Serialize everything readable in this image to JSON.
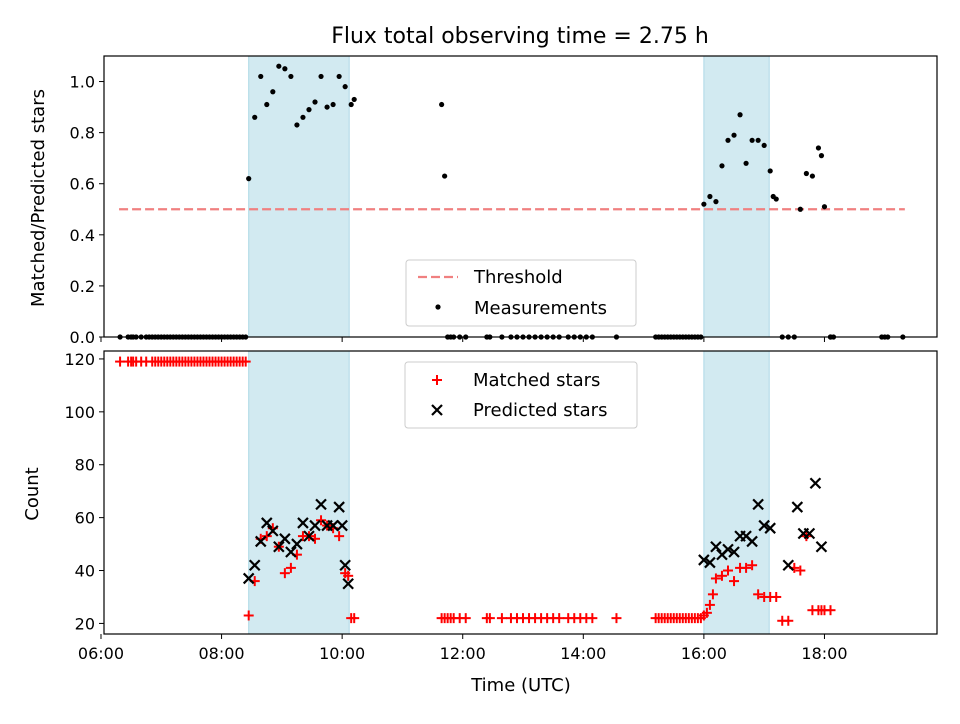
{
  "chart_data": [
    {
      "type": "scatter",
      "title": "Flux total observing time = 2.75 h",
      "xlabel": "",
      "ylabel": "Matched/Predicted stars",
      "xlim": [
        "06:03",
        "19:52"
      ],
      "ylim": [
        0,
        1.1
      ],
      "xticks": [
        "06:00",
        "08:00",
        "10:00",
        "12:00",
        "14:00",
        "16:00",
        "18:00"
      ],
      "yticks": [
        0.0,
        0.2,
        0.4,
        0.6,
        0.8,
        1.0
      ],
      "ytick_labels": [
        "0.0",
        "0.2",
        "0.4",
        "0.6",
        "0.8",
        "1.0"
      ],
      "grid": false,
      "legend": "bottom-center",
      "highlight_color": "#add8e6",
      "highlighted_intervals": [
        [
          "08:27",
          "10:07"
        ],
        [
          "16:00",
          "17:05"
        ]
      ],
      "threshold": {
        "name": "Threshold",
        "y": 0.5,
        "x_range": [
          "06:18",
          "19:20"
        ],
        "color": "#f08080"
      },
      "series": [
        {
          "name": "Measurements",
          "color": "#000000",
          "x": [
            "06:19",
            "06:27",
            "06:30",
            "06:32",
            "06:35",
            "06:40",
            "06:45",
            "06:48",
            "06:51",
            "06:54",
            "06:57",
            "07:00",
            "07:03",
            "07:06",
            "07:09",
            "07:12",
            "07:15",
            "07:18",
            "07:21",
            "07:24",
            "07:27",
            "07:30",
            "07:33",
            "07:36",
            "07:39",
            "07:42",
            "07:45",
            "07:48",
            "07:51",
            "07:54",
            "07:57",
            "08:00",
            "08:03",
            "08:06",
            "08:09",
            "08:12",
            "08:15",
            "08:18",
            "08:21",
            "08:24",
            "08:27",
            "08:33",
            "08:39",
            "08:45",
            "08:51",
            "08:57",
            "09:03",
            "09:09",
            "09:15",
            "09:21",
            "09:27",
            "09:33",
            "09:39",
            "09:45",
            "09:51",
            "09:57",
            "10:03",
            "10:09",
            "10:12",
            "11:39",
            "11:42",
            "11:45",
            "11:48",
            "11:51",
            "11:57",
            "12:03",
            "12:24",
            "12:27",
            "12:39",
            "12:48",
            "12:54",
            "13:00",
            "13:06",
            "13:12",
            "13:18",
            "13:24",
            "13:30",
            "13:36",
            "13:45",
            "13:51",
            "13:57",
            "14:03",
            "14:09",
            "14:33",
            "15:12",
            "15:15",
            "15:18",
            "15:21",
            "15:24",
            "15:27",
            "15:30",
            "15:33",
            "15:36",
            "15:39",
            "15:42",
            "15:45",
            "15:48",
            "15:51",
            "15:54",
            "15:57",
            "16:00",
            "16:06",
            "16:12",
            "16:18",
            "16:24",
            "16:30",
            "16:36",
            "16:42",
            "16:48",
            "16:54",
            "17:00",
            "17:06",
            "17:09",
            "17:12",
            "17:18",
            "17:24",
            "17:30",
            "17:36",
            "17:42",
            "17:48",
            "17:54",
            "17:57",
            "18:00",
            "18:06",
            "18:06",
            "18:09",
            "18:57",
            "19:00",
            "19:03",
            "19:18"
          ],
          "y": [
            0,
            0,
            0,
            0,
            0,
            0,
            0,
            0,
            0,
            0,
            0,
            0,
            0,
            0,
            0,
            0,
            0,
            0,
            0,
            0,
            0,
            0,
            0,
            0,
            0,
            0,
            0,
            0,
            0,
            0,
            0,
            0,
            0,
            0,
            0,
            0,
            0,
            0,
            0,
            0,
            0.62,
            0.86,
            1.02,
            0.91,
            0.96,
            1.06,
            1.05,
            1.02,
            0.83,
            0.86,
            0.89,
            0.92,
            1.02,
            0.9,
            0.91,
            1.02,
            0.98,
            0.91,
            0.93,
            0.91,
            0.63,
            0,
            0,
            0,
            0,
            0,
            0,
            0,
            0,
            0,
            0,
            0,
            0,
            0,
            0,
            0,
            0,
            0,
            0,
            0,
            0,
            0,
            0,
            0,
            0,
            0,
            0,
            0,
            0,
            0,
            0,
            0,
            0,
            0,
            0,
            0,
            0,
            0,
            0,
            0,
            0.52,
            0.55,
            0.53,
            0.67,
            0.77,
            0.79,
            0.87,
            0.68,
            0.77,
            0.77,
            0.75,
            0.65,
            0.55,
            0.54,
            0,
            0,
            0,
            0.5,
            0.64,
            0.63,
            0.74,
            0.71,
            0.51,
            0,
            0,
            0,
            0,
            0,
            0,
            0
          ]
        }
      ]
    },
    {
      "type": "scatter",
      "title": "",
      "xlabel": "Time (UTC)",
      "ylabel": "Count",
      "xlim": [
        "06:03",
        "19:52"
      ],
      "ylim": [
        16,
        123
      ],
      "xticks": [
        "06:00",
        "08:00",
        "10:00",
        "12:00",
        "14:00",
        "16:00",
        "18:00"
      ],
      "yticks": [
        20,
        40,
        60,
        80,
        100,
        120
      ],
      "ytick_labels": [
        "20",
        "40",
        "60",
        "80",
        "100",
        "120"
      ],
      "grid": false,
      "legend": "top-center",
      "highlight_color": "#add8e6",
      "highlighted_intervals": [
        [
          "08:27",
          "10:07"
        ],
        [
          "16:00",
          "17:05"
        ]
      ],
      "series": [
        {
          "name": "Matched stars",
          "marker": "+",
          "color": "#ff0000",
          "x": [
            "06:19",
            "06:27",
            "06:30",
            "06:32",
            "06:35",
            "06:40",
            "06:45",
            "06:51",
            "06:54",
            "06:57",
            "07:00",
            "07:03",
            "07:06",
            "07:09",
            "07:12",
            "07:15",
            "07:18",
            "07:21",
            "07:24",
            "07:27",
            "07:30",
            "07:33",
            "07:36",
            "07:39",
            "07:42",
            "07:45",
            "07:48",
            "07:51",
            "07:54",
            "07:57",
            "08:00",
            "08:03",
            "08:06",
            "08:09",
            "08:12",
            "08:15",
            "08:18",
            "08:21",
            "08:24",
            "08:27",
            "08:33",
            "08:39",
            "08:45",
            "08:51",
            "08:57",
            "09:03",
            "09:09",
            "09:15",
            "09:21",
            "09:27",
            "09:33",
            "09:39",
            "09:45",
            "09:51",
            "09:57",
            "10:03",
            "10:06",
            "10:09",
            "10:12",
            "11:39",
            "11:42",
            "11:45",
            "11:48",
            "11:51",
            "11:57",
            "12:03",
            "12:24",
            "12:27",
            "12:39",
            "12:48",
            "12:54",
            "13:00",
            "13:06",
            "13:12",
            "13:18",
            "13:24",
            "13:30",
            "13:36",
            "13:45",
            "13:51",
            "13:57",
            "14:03",
            "14:09",
            "14:33",
            "15:12",
            "15:15",
            "15:18",
            "15:21",
            "15:24",
            "15:27",
            "15:30",
            "15:33",
            "15:36",
            "15:39",
            "15:42",
            "15:45",
            "15:48",
            "15:51",
            "15:54",
            "15:57",
            "16:00",
            "16:03",
            "16:06",
            "16:09",
            "16:12",
            "16:18",
            "16:24",
            "16:30",
            "16:36",
            "16:42",
            "16:48",
            "16:54",
            "17:00",
            "17:06",
            "17:12",
            "17:18",
            "17:24",
            "17:30",
            "17:36",
            "17:42",
            "17:48",
            "17:54",
            "17:57",
            "18:00",
            "18:06"
          ],
          "y": [
            119,
            119,
            119,
            119,
            119,
            119,
            119,
            119,
            119,
            119,
            119,
            119,
            119,
            119,
            119,
            119,
            119,
            119,
            119,
            119,
            119,
            119,
            119,
            119,
            119,
            119,
            119,
            119,
            119,
            119,
            119,
            119,
            119,
            119,
            119,
            119,
            119,
            119,
            119,
            23,
            36,
            52,
            53,
            56,
            49,
            39,
            41,
            46,
            53,
            53,
            52,
            59,
            57,
            56,
            53,
            39,
            38,
            22,
            22,
            22,
            22,
            22,
            22,
            22,
            22,
            22,
            22,
            22,
            22,
            22,
            22,
            22,
            22,
            22,
            22,
            22,
            22,
            22,
            22,
            22,
            22,
            22,
            22,
            22,
            22,
            22,
            22,
            22,
            22,
            22,
            22,
            22,
            22,
            22,
            22,
            22,
            22,
            22,
            22,
            22,
            23,
            24,
            27,
            31,
            37,
            38,
            40,
            36,
            41,
            41,
            42,
            31,
            30,
            30,
            30,
            21,
            21,
            41,
            40,
            53,
            25,
            25,
            25,
            25,
            25
          ]
        },
        {
          "name": "Predicted stars",
          "marker": "x",
          "color": "#000000",
          "x": [
            "08:27",
            "08:33",
            "08:39",
            "08:45",
            "08:51",
            "08:57",
            "09:03",
            "09:09",
            "09:15",
            "09:21",
            "09:27",
            "09:33",
            "09:39",
            "09:45",
            "09:51",
            "09:57",
            "10:00",
            "10:03",
            "10:06",
            "16:00",
            "16:06",
            "16:12",
            "16:18",
            "16:24",
            "16:30",
            "16:36",
            "16:42",
            "16:48",
            "16:54",
            "17:00",
            "17:06",
            "17:24",
            "17:33",
            "17:39",
            "17:45",
            "17:51",
            "17:57"
          ],
          "y": [
            37,
            42,
            51,
            58,
            55,
            49,
            52,
            47,
            50,
            58,
            53,
            57,
            65,
            57,
            57,
            64,
            57,
            42,
            35,
            44,
            43,
            49,
            46,
            48,
            47,
            53,
            53,
            51,
            65,
            57,
            56,
            42,
            64,
            54,
            54,
            73,
            49
          ]
        }
      ]
    }
  ]
}
